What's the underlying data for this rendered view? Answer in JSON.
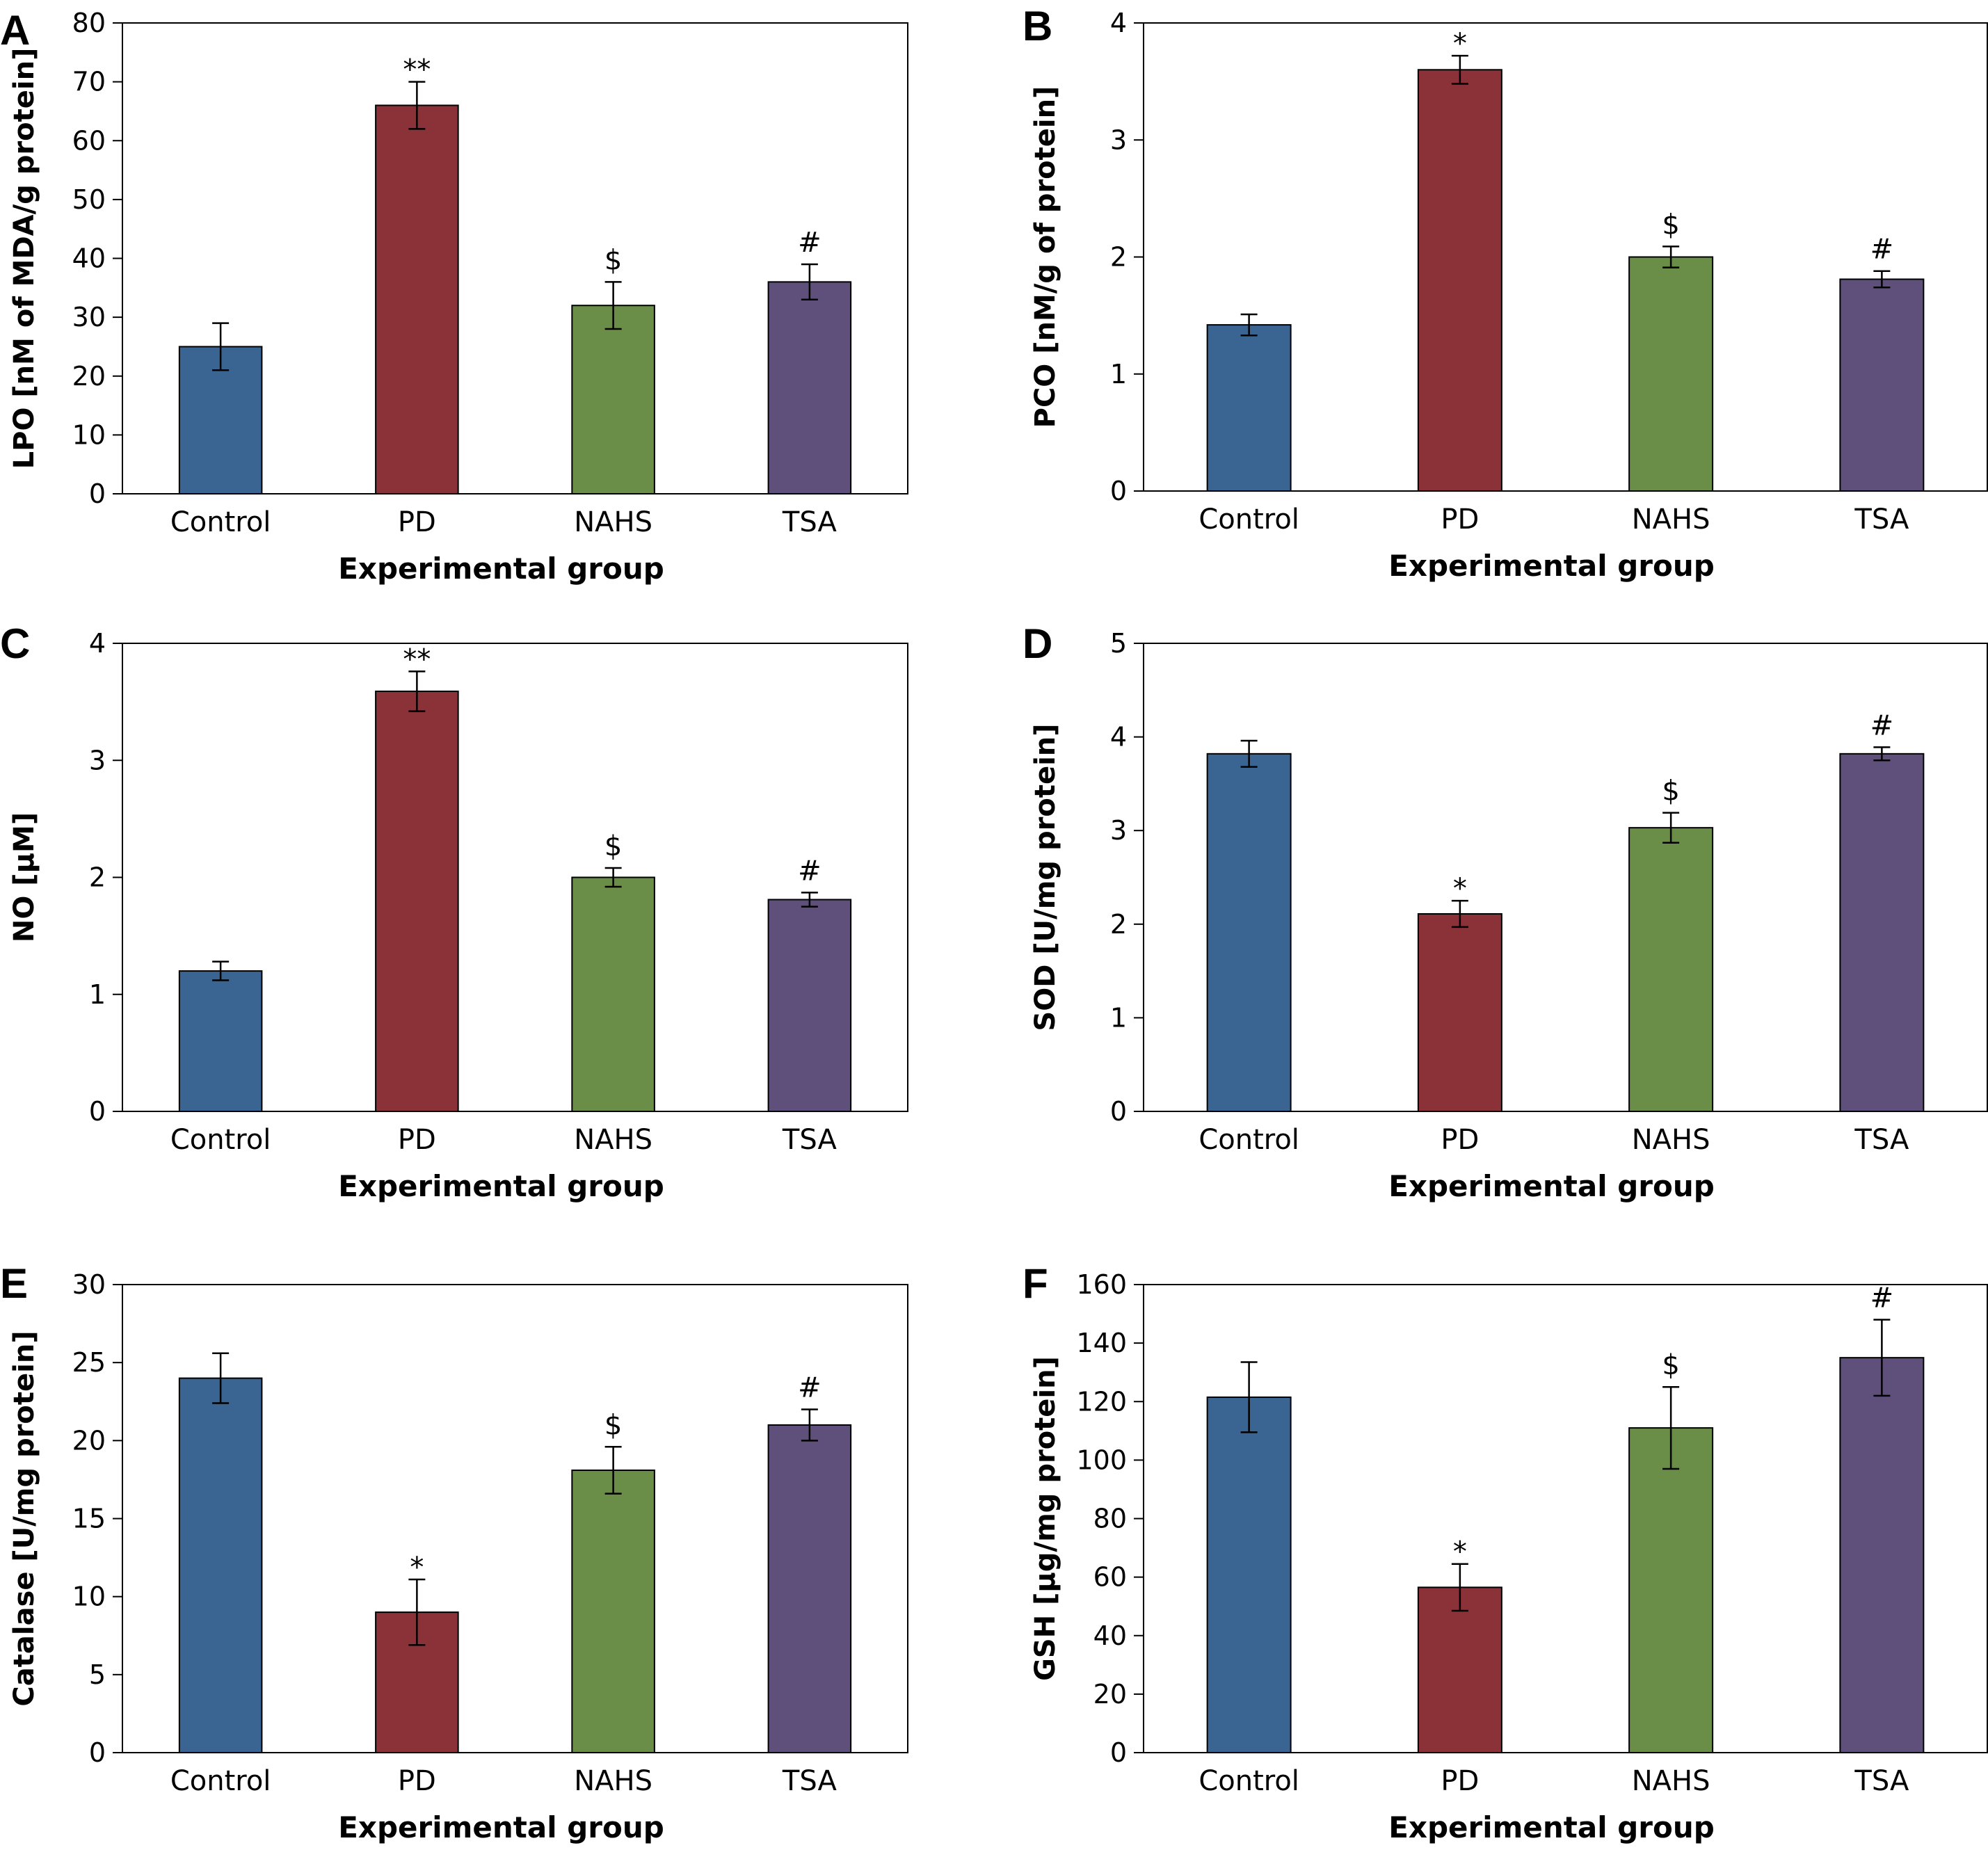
{
  "chart_data": [
    {
      "type": "bar",
      "panel_label": "A",
      "categories": [
        "Control",
        "PD",
        "NAHS",
        "TSA"
      ],
      "values": [
        25,
        66,
        32,
        36
      ],
      "errors": [
        4,
        4,
        4,
        3
      ],
      "annotations": [
        "",
        "**",
        "$",
        "#"
      ],
      "xlabel": "Experimental group",
      "ylabel": "LPO [nM of MDA/g protein]",
      "ylim": [
        0,
        80
      ],
      "yticks": [
        0,
        10,
        20,
        30,
        40,
        50,
        60,
        70,
        80
      ],
      "colors": [
        "#3a6592",
        "#8b3138",
        "#6a8d48",
        "#5f507b"
      ]
    },
    {
      "type": "bar",
      "panel_label": "B",
      "categories": [
        "Control",
        "PD",
        "NAHS",
        "TSA"
      ],
      "values": [
        1.42,
        3.6,
        2.0,
        1.81
      ],
      "errors": [
        0.09,
        0.12,
        0.09,
        0.07
      ],
      "annotations": [
        "",
        "*",
        "$",
        "#"
      ],
      "xlabel": "Experimental group",
      "ylabel": "PCO [nM/g of protein]",
      "ylim": [
        0,
        4
      ],
      "yticks": [
        0,
        1,
        2,
        3,
        4
      ],
      "colors": [
        "#3a6592",
        "#8b3138",
        "#6a8d48",
        "#5f507b"
      ]
    },
    {
      "type": "bar",
      "panel_label": "C",
      "categories": [
        "Control",
        "PD",
        "NAHS",
        "TSA"
      ],
      "values": [
        1.2,
        3.59,
        2.0,
        1.81
      ],
      "errors": [
        0.08,
        0.17,
        0.08,
        0.06
      ],
      "annotations": [
        "",
        "**",
        "$",
        "#"
      ],
      "xlabel": "Experimental group",
      "ylabel": "NO [µM]",
      "ylim": [
        0,
        4
      ],
      "yticks": [
        0,
        1,
        2,
        3,
        4
      ],
      "colors": [
        "#3a6592",
        "#8b3138",
        "#6a8d48",
        "#5f507b"
      ]
    },
    {
      "type": "bar",
      "panel_label": "D",
      "categories": [
        "Control",
        "PD",
        "NAHS",
        "TSA"
      ],
      "values": [
        3.82,
        2.11,
        3.03,
        3.82
      ],
      "errors": [
        0.14,
        0.14,
        0.16,
        0.07
      ],
      "annotations": [
        "",
        "*",
        "$",
        "#"
      ],
      "xlabel": "Experimental group",
      "ylabel": "SOD [U/mg protein]",
      "ylim": [
        0,
        5
      ],
      "yticks": [
        0,
        1,
        2,
        3,
        4,
        5
      ],
      "colors": [
        "#3a6592",
        "#8b3138",
        "#6a8d48",
        "#5f507b"
      ]
    },
    {
      "type": "bar",
      "panel_label": "E",
      "categories": [
        "Control",
        "PD",
        "NAHS",
        "TSA"
      ],
      "values": [
        24,
        9,
        18.1,
        21
      ],
      "errors": [
        1.6,
        2.1,
        1.5,
        1.0
      ],
      "annotations": [
        "",
        "*",
        "$",
        "#"
      ],
      "xlabel": "Experimental group",
      "ylabel": "Catalase [U/mg protein]",
      "ylim": [
        0,
        30
      ],
      "yticks": [
        0,
        5,
        10,
        15,
        20,
        25,
        30
      ],
      "colors": [
        "#3a6592",
        "#8b3138",
        "#6a8d48",
        "#5f507b"
      ]
    },
    {
      "type": "bar",
      "panel_label": "F",
      "categories": [
        "Control",
        "PD",
        "NAHS",
        "TSA"
      ],
      "values": [
        121.5,
        56.5,
        111,
        135
      ],
      "errors": [
        12,
        8,
        14,
        13
      ],
      "annotations": [
        "",
        "*",
        "$",
        "#"
      ],
      "xlabel": "Experimental group",
      "ylabel": "GSH [µg/mg protein]",
      "ylim": [
        0,
        160
      ],
      "yticks": [
        0,
        20,
        40,
        60,
        80,
        100,
        120,
        140,
        160
      ],
      "colors": [
        "#3a6592",
        "#8b3138",
        "#6a8d48",
        "#5f507b"
      ]
    }
  ]
}
